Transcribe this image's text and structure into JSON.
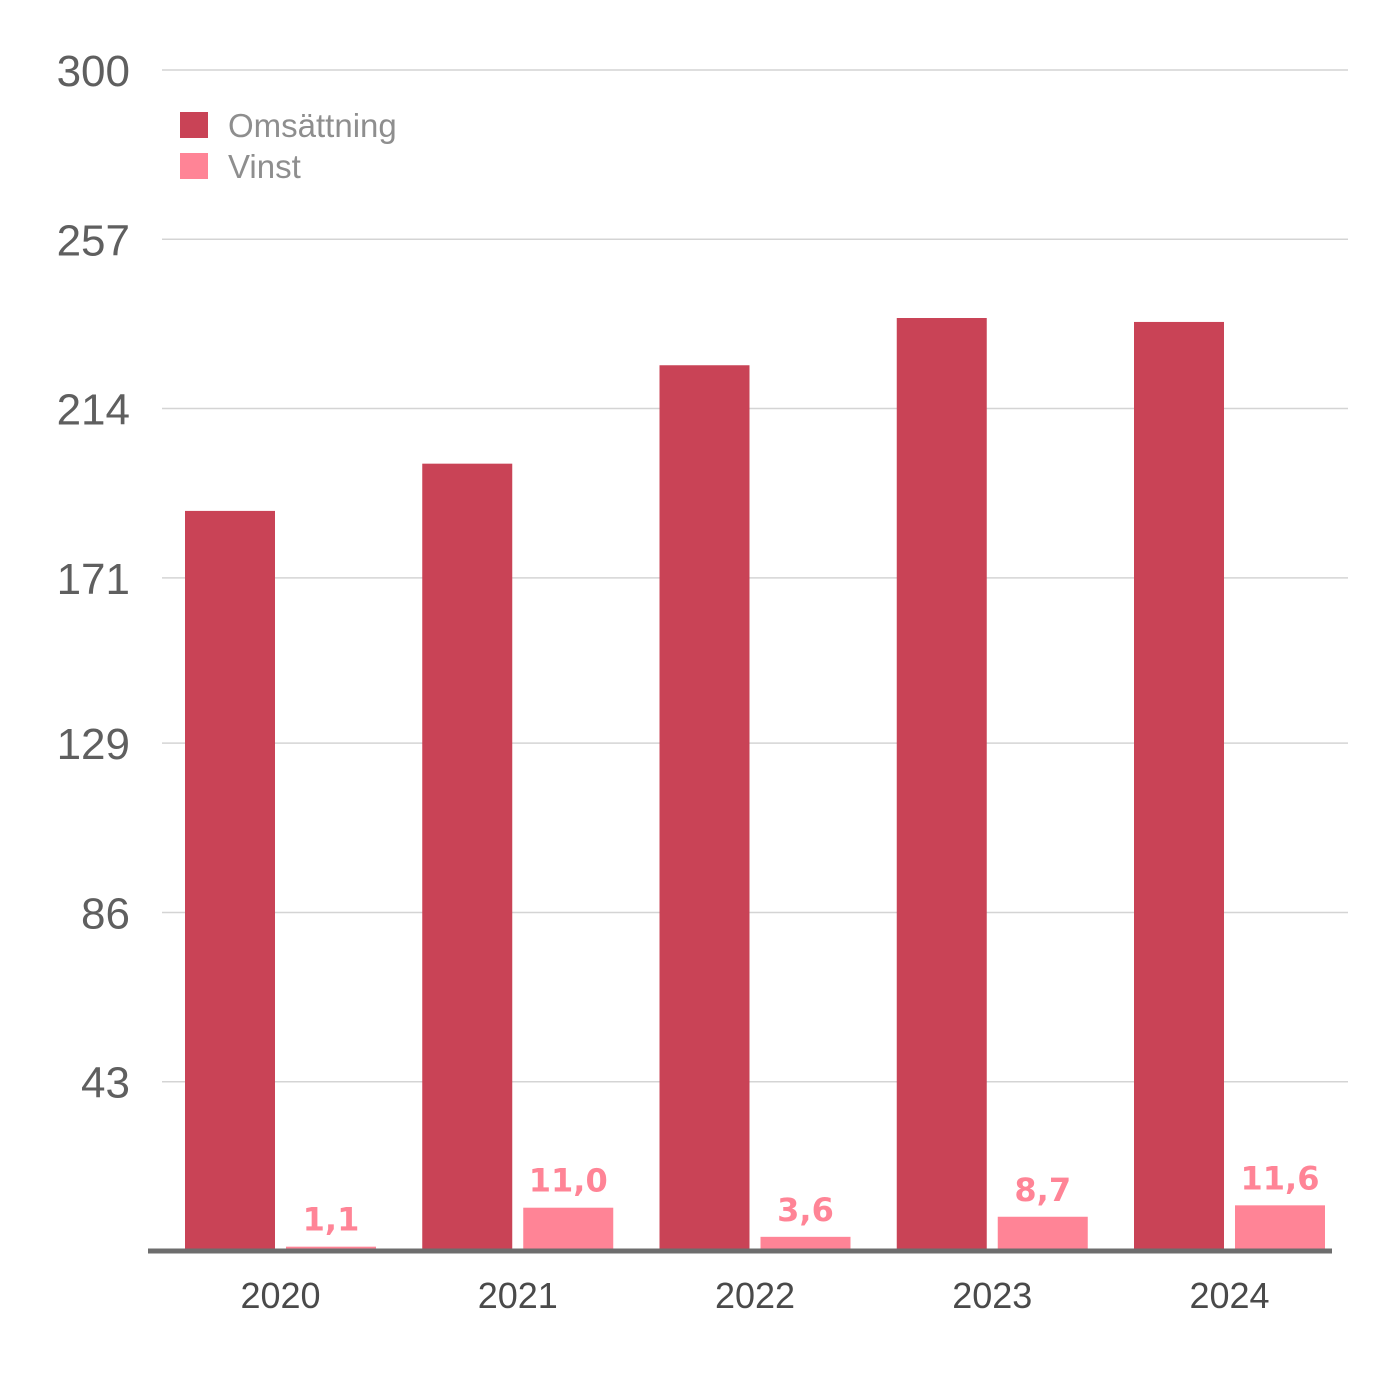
{
  "chart_data": {
    "type": "bar",
    "categories": [
      "2020",
      "2021",
      "2022",
      "2023",
      "2024"
    ],
    "series": [
      {
        "name": "Omsättning",
        "color": "#c94356",
        "values": [
          188,
          200,
          225,
          237,
          236
        ],
        "labels": null
      },
      {
        "name": "Vinst",
        "color": "#ff8496",
        "values": [
          1.1,
          11.0,
          3.6,
          8.7,
          11.6
        ],
        "labels": [
          "1,1",
          "11,0",
          "3,6",
          "8,7",
          "11,6"
        ]
      }
    ],
    "yticks": [
      43,
      86,
      129,
      171,
      214,
      257,
      300
    ],
    "ylim": [
      0,
      300
    ],
    "grid": true,
    "legend_position": "top-left",
    "title": "",
    "xlabel": "",
    "ylabel": ""
  }
}
